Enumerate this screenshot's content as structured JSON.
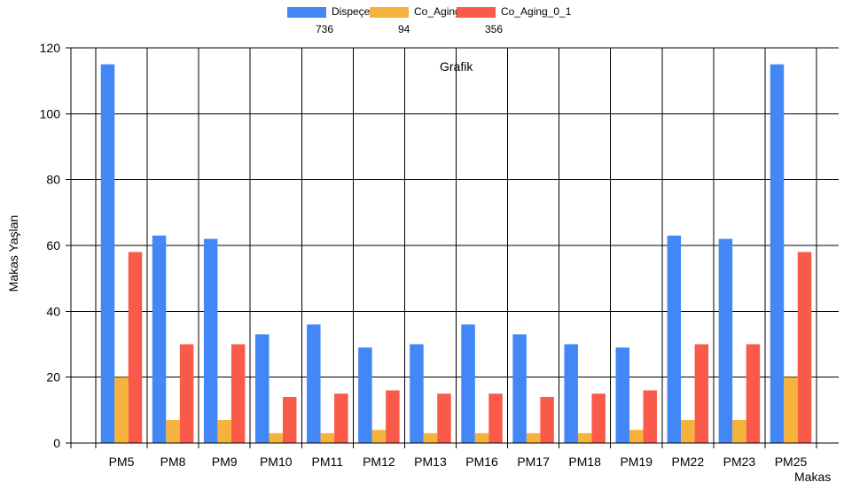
{
  "chart_data": {
    "type": "bar",
    "title": "Grafik",
    "xlabel": "Makas",
    "ylabel": "Makas Yaşlan",
    "ylim": [
      0,
      120
    ],
    "yticks": [
      0,
      20,
      40,
      60,
      80,
      100,
      120
    ],
    "grid": true,
    "legend_position": "top-center",
    "categories": [
      "PM5",
      "PM8",
      "PM9",
      "PM10",
      "PM11",
      "PM12",
      "PM13",
      "PM16",
      "PM17",
      "PM18",
      "PM19",
      "PM22",
      "PM23",
      "PM25"
    ],
    "series": [
      {
        "name": "Dispeçer",
        "count": "736",
        "color": "#4287f5",
        "values": [
          115,
          63,
          62,
          33,
          36,
          29,
          30,
          36,
          33,
          30,
          29,
          63,
          62,
          115
        ]
      },
      {
        "name": "Co_Aging",
        "count": "94",
        "color": "#f5b33b",
        "values": [
          20,
          7,
          7,
          3,
          3,
          4,
          3,
          3,
          3,
          3,
          4,
          7,
          7,
          20
        ]
      },
      {
        "name": "Co_Aging_0_1",
        "count": "356",
        "color": "#fa5a4a",
        "values": [
          58,
          30,
          30,
          14,
          15,
          16,
          15,
          15,
          14,
          15,
          16,
          30,
          30,
          58
        ]
      }
    ]
  }
}
